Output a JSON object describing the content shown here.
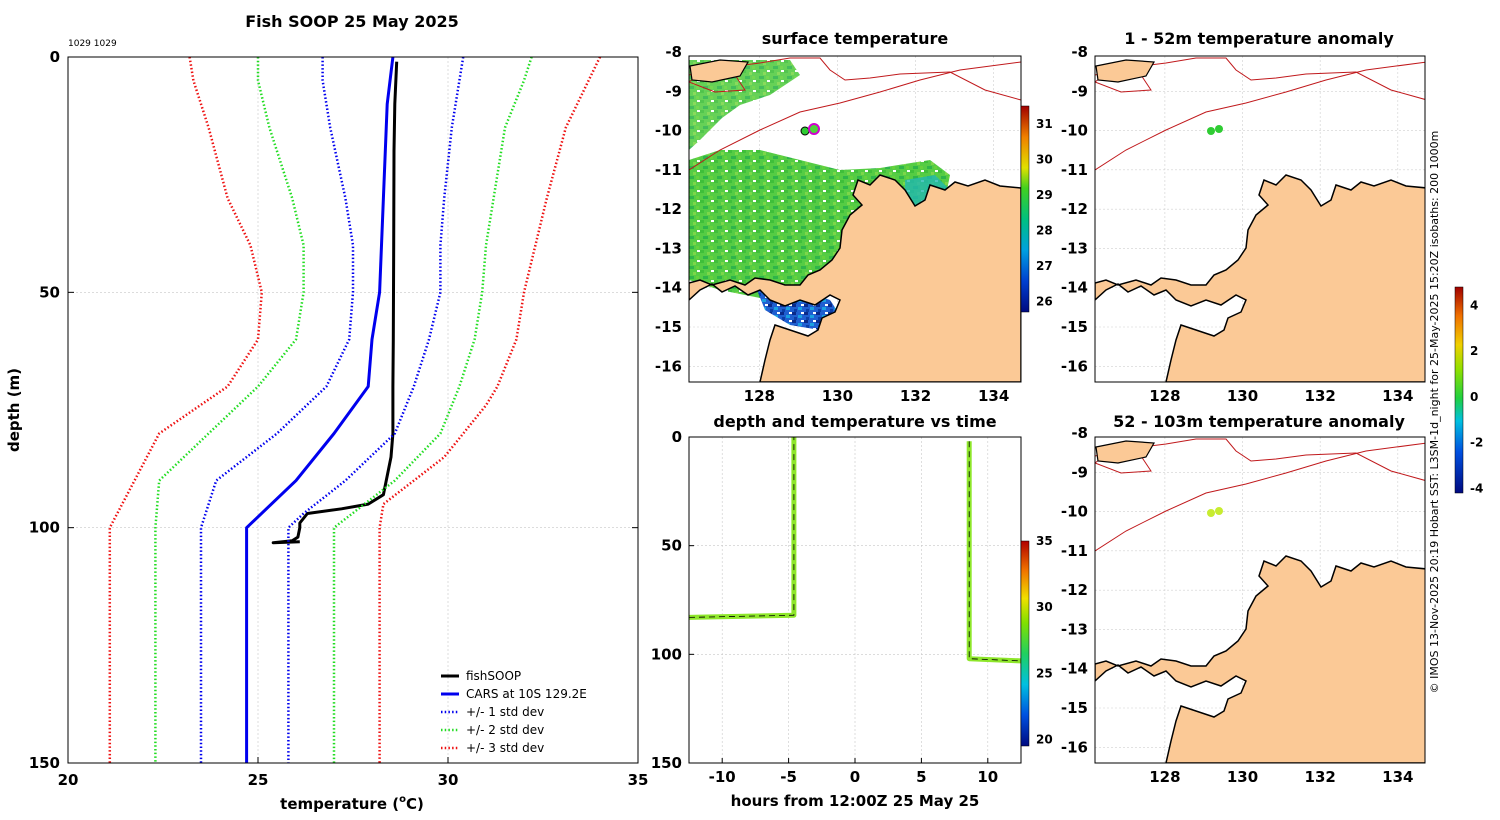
{
  "figure": {
    "footnote_ids": "1029 1029",
    "credit": "© IMOS 13-Nov-2025 20:19 Hobart SST: L3SM-1d_night for 25-May-2025 15:20Z isobaths: 200  1000m"
  },
  "colors": {
    "land": "#fbc996",
    "coast": "#000000",
    "isobath": "#c0191c",
    "fishsoop": "#000000",
    "cars": "#0000ee",
    "std1": "#0000ee",
    "std2": "#22dd22",
    "std3": "#ee1111",
    "sst_mid": "#33cc33",
    "sst_cool": "#0a3a9a"
  },
  "chart_data": [
    {
      "id": "profile",
      "type": "line",
      "title": "Fish SOOP 25 May 2025",
      "xlabel": "temperature (°C)",
      "xlabel_main": "temperature (",
      "xlabel_deg": "o",
      "xlabel_tail": "C)",
      "ylabel": "depth (m)",
      "xlim": [
        20,
        35
      ],
      "ylim": [
        0,
        150
      ],
      "y_reversed": true,
      "xticks": [
        20,
        25,
        30,
        35
      ],
      "yticks": [
        0,
        50,
        100,
        150
      ],
      "grid": true,
      "legend_position": "bottom-right",
      "series": [
        {
          "name": "fishSOOP",
          "style": "solid",
          "width": 3,
          "color_key": "fishsoop",
          "temp": [
            28.65,
            28.6,
            28.58,
            28.57,
            28.56,
            28.55,
            28.55,
            28.5,
            28.3,
            27.9,
            27.2,
            26.3,
            26.1,
            26.1,
            26.05,
            25.9,
            25.4,
            26.1
          ],
          "depth": [
            1,
            10,
            20,
            40,
            60,
            70,
            80,
            85,
            93,
            95,
            96,
            97,
            99,
            100,
            102,
            102.8,
            103.2,
            103.0
          ]
        },
        {
          "name": "CARS at 10S 129.2E",
          "style": "solid",
          "width": 3,
          "color_key": "cars",
          "temp": [
            28.55,
            28.4,
            28.3,
            28.2,
            28.0,
            27.9,
            27.0,
            26.0,
            24.7,
            24.7
          ],
          "depth": [
            0,
            10,
            30,
            50,
            60,
            70,
            80,
            90,
            100,
            150
          ]
        },
        {
          "name": "+/- 1 std dev",
          "style": "dotted",
          "width": 3,
          "color_key": "std1",
          "temp": [
            26.7,
            26.7,
            26.9,
            27.3,
            27.5,
            27.5,
            27.4,
            26.8,
            25.5,
            23.9,
            23.5,
            23.5
          ],
          "depth": [
            0,
            5,
            15,
            30,
            40,
            50,
            60,
            70,
            80,
            90,
            100,
            150
          ]
        },
        {
          "name": "+/- 1 std dev (upper)",
          "style": "dotted",
          "width": 3,
          "color_key": "std1",
          "temp": [
            30.4,
            30.3,
            30.1,
            29.9,
            29.8,
            29.8,
            29.5,
            29.1,
            28.6,
            27.3,
            26.2,
            25.8,
            25.8
          ],
          "depth": [
            0,
            5,
            15,
            30,
            40,
            50,
            60,
            70,
            80,
            90,
            97,
            100,
            150
          ]
        },
        {
          "name": "+/- 2 std dev",
          "style": "dotted",
          "width": 3,
          "color_key": "std2",
          "temp": [
            25.0,
            25.0,
            25.3,
            25.9,
            26.2,
            26.2,
            26.0,
            25.0,
            23.7,
            22.4,
            22.3,
            22.3
          ],
          "depth": [
            0,
            5,
            15,
            30,
            40,
            50,
            60,
            70,
            80,
            90,
            100,
            150
          ]
        },
        {
          "name": "+/- 2 std dev (upper)",
          "style": "dotted",
          "width": 3,
          "color_key": "std2",
          "temp": [
            32.2,
            32.0,
            31.5,
            31.2,
            31.0,
            30.9,
            30.7,
            30.3,
            29.8,
            28.6,
            27.0,
            27.0
          ],
          "depth": [
            0,
            5,
            15,
            30,
            40,
            50,
            60,
            70,
            80,
            90,
            100,
            150
          ]
        },
        {
          "name": "+/- 3 std dev",
          "style": "dotted",
          "width": 3,
          "color_key": "std3",
          "temp": [
            23.2,
            23.3,
            23.7,
            24.2,
            24.8,
            25.1,
            25.0,
            24.2,
            22.4,
            21.1,
            21.1
          ],
          "depth": [
            0,
            5,
            15,
            30,
            40,
            50,
            60,
            70,
            80,
            100,
            150
          ]
        },
        {
          "name": "+/- 3 std dev (upper)",
          "style": "dotted",
          "width": 3,
          "color_key": "std3",
          "temp": [
            34.0,
            33.7,
            33.1,
            32.6,
            32.3,
            32.0,
            31.8,
            31.3,
            31.0,
            29.9,
            28.3,
            28.2,
            28.2
          ],
          "depth": [
            0,
            5,
            15,
            30,
            40,
            50,
            60,
            70,
            74,
            85,
            95,
            100,
            150
          ]
        }
      ],
      "legend": [
        "fishSOOP",
        "CARS at 10S 129.2E",
        "+/- 1 std dev",
        "+/- 2 std dev",
        "+/- 3 std dev"
      ]
    },
    {
      "id": "sst_map",
      "type": "heatmap",
      "title": "surface temperature",
      "xlim": [
        126.2,
        134.7
      ],
      "ylim": [
        -16.4,
        -8
      ],
      "xticks": [
        128,
        130,
        132,
        134
      ],
      "yticks": [
        -8,
        -9,
        -10,
        -11,
        -12,
        -13,
        -14,
        -15,
        -16
      ],
      "colorbar": {
        "ticks": [
          26,
          27,
          28,
          29,
          30,
          31
        ],
        "range": [
          25.7,
          31.5
        ]
      },
      "station_points": [
        {
          "lon": 129.0,
          "lat": -10.05
        },
        {
          "lon": 129.3,
          "lat": -10.0
        }
      ]
    },
    {
      "id": "anomaly_shallow",
      "type": "heatmap",
      "title": "1 - 52m temperature anomaly",
      "xlim": [
        126.2,
        134.7
      ],
      "ylim": [
        -16.4,
        -8
      ],
      "xticks": [
        128,
        130,
        132,
        134
      ],
      "yticks": [
        -8,
        -9,
        -10,
        -11,
        -12,
        -13,
        -14,
        -15,
        -16
      ],
      "points": [
        {
          "lon": 129.0,
          "lat": -10.05,
          "value": 0.2
        },
        {
          "lon": 129.2,
          "lat": -10.0,
          "value": 0.2
        }
      ]
    },
    {
      "id": "depth_time",
      "type": "scatter",
      "title": "depth and temperature vs time",
      "xlabel": "hours from 12:00Z 25 May 25",
      "xlim": [
        -12.5,
        12.5
      ],
      "ylim": [
        0,
        150
      ],
      "y_reversed": true,
      "xticks": [
        -10,
        -5,
        0,
        5,
        10
      ],
      "yticks": [
        0,
        50,
        100,
        150
      ],
      "colorbar": {
        "ticks": [
          20,
          25,
          30,
          35
        ],
        "range": [
          19.5,
          35
        ]
      },
      "segments": [
        {
          "hours": [
            -12.5,
            -4.6,
            -4.6
          ],
          "depth": [
            83,
            82,
            0
          ],
          "temp": 28.6
        },
        {
          "hours": [
            8.6,
            8.6,
            12.5
          ],
          "depth": [
            2,
            102,
            103
          ],
          "temp": 28.4
        }
      ]
    },
    {
      "id": "anomaly_deep",
      "type": "heatmap",
      "title": "52 - 103m temperature anomaly",
      "xlim": [
        126.2,
        134.7
      ],
      "ylim": [
        -16.4,
        -8
      ],
      "xticks": [
        128,
        130,
        132,
        134
      ],
      "yticks": [
        -8,
        -9,
        -10,
        -11,
        -12,
        -13,
        -14,
        -15,
        -16
      ],
      "colorbar": {
        "ticks": [
          4,
          2,
          0,
          -2,
          -4
        ],
        "range": [
          -4.2,
          4.8
        ]
      },
      "points": [
        {
          "lon": 129.0,
          "lat": -10.05,
          "value": 1.5
        },
        {
          "lon": 129.2,
          "lat": -10.0,
          "value": 1.5
        }
      ]
    }
  ]
}
